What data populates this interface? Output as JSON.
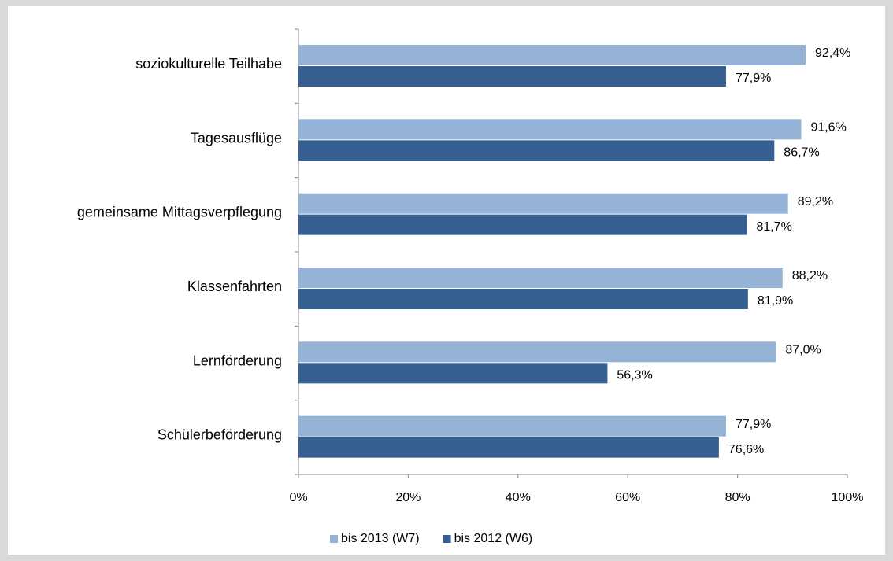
{
  "chart_data": {
    "type": "bar",
    "orientation": "horizontal",
    "categories": [
      "soziokulturelle Teilhabe",
      "Tagesausflüge",
      "gemeinsame Mittagsverpflegung",
      "Klassenfahrten",
      "Lernförderung",
      "Schülerbeförderung"
    ],
    "series": [
      {
        "name": "bis 2013 (W7)",
        "color": "#95b3d7",
        "values": [
          92.4,
          91.6,
          89.2,
          88.2,
          87.0,
          77.9
        ],
        "value_labels": [
          "92,4%",
          "91,6%",
          "89,2%",
          "88,2%",
          "87,0%",
          "77,9%"
        ]
      },
      {
        "name": "bis 2012 (W6)",
        "color": "#376092",
        "values": [
          77.9,
          86.7,
          81.7,
          81.9,
          56.3,
          76.6
        ],
        "value_labels": [
          "77,9%",
          "86,7%",
          "81,7%",
          "81,9%",
          "56,3%",
          "76,6%"
        ]
      }
    ],
    "xlim": [
      0,
      100
    ],
    "xticks": [
      {
        "value": 0,
        "label": "0%"
      },
      {
        "value": 20,
        "label": "20%"
      },
      {
        "value": 40,
        "label": "40%"
      },
      {
        "value": 60,
        "label": "60%"
      },
      {
        "value": 80,
        "label": "80%"
      },
      {
        "value": 100,
        "label": "100%"
      }
    ],
    "legend": "bottom"
  }
}
